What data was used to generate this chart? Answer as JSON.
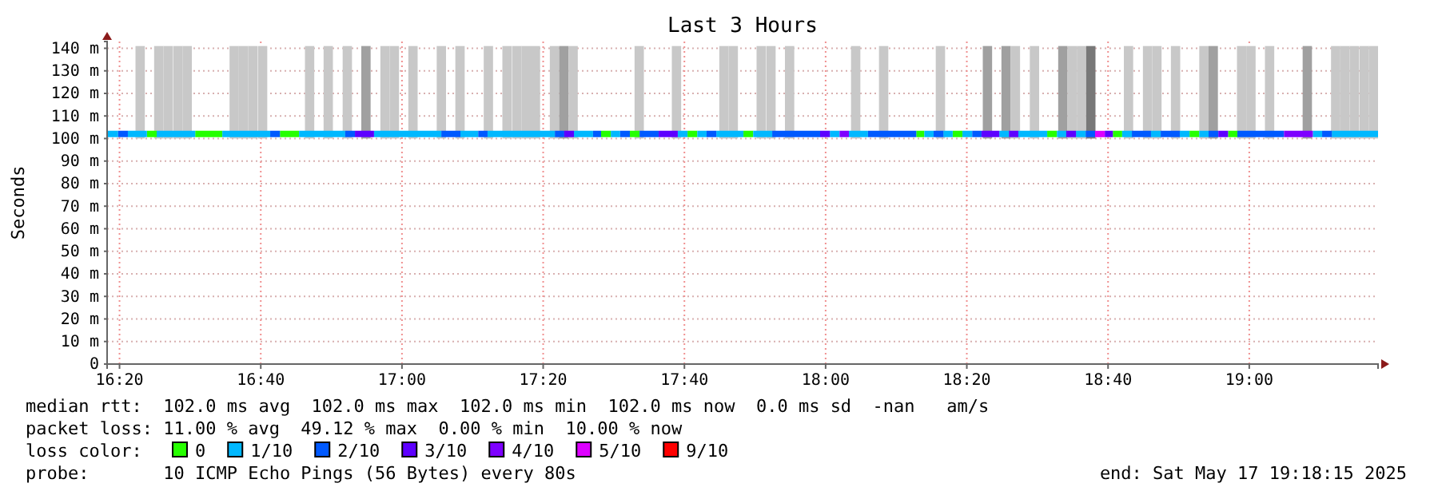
{
  "chart_data": {
    "type": "step",
    "title": "Last 3 Hours",
    "ylabel": "Seconds",
    "legend_title": "loss color:",
    "legend": "bottom",
    "grid": true,
    "xlim": [
      16.304,
      19.304
    ],
    "xticks": [
      {
        "value": 16.3333,
        "label": "16:20"
      },
      {
        "value": 16.6667,
        "label": "16:40"
      },
      {
        "value": 17,
        "label": "17:00"
      },
      {
        "value": 17.3333,
        "label": "17:20"
      },
      {
        "value": 17.6667,
        "label": "17:40"
      },
      {
        "value": 18,
        "label": "18:00"
      },
      {
        "value": 18.3333,
        "label": "18:20"
      },
      {
        "value": 18.6667,
        "label": "18:40"
      },
      {
        "value": 19,
        "label": "19:00"
      }
    ],
    "ylim": [
      0,
      143
    ],
    "yticks": [
      0,
      {
        "value": 10,
        "label": "10 m"
      },
      {
        "value": 20,
        "label": "20 m"
      },
      {
        "value": 30,
        "label": "30 m"
      },
      {
        "value": 40,
        "label": "40 m"
      },
      {
        "value": 50,
        "label": "50 m"
      },
      {
        "value": 60,
        "label": "60 m"
      },
      {
        "value": 70,
        "label": "70 m"
      },
      {
        "value": 80,
        "label": "80 m"
      },
      {
        "value": 90,
        "label": "90 m"
      },
      {
        "value": 100,
        "label": "100 m"
      },
      {
        "value": 110,
        "label": "110 m"
      },
      {
        "value": 120,
        "label": "120 m"
      },
      {
        "value": 130,
        "label": "130 m"
      },
      {
        "value": 140,
        "label": "140 m"
      }
    ],
    "series": [
      {
        "type": "bar",
        "x": [
          16.382,
          16.426,
          16.448,
          16.471,
          16.493,
          16.604,
          16.626,
          16.648,
          16.671,
          16.782,
          16.826,
          16.871,
          16.915,
          16.96,
          16.982,
          17.026,
          17.093,
          17.137,
          17.204,
          17.248,
          17.271,
          17.293,
          17.315,
          17.36,
          17.382,
          17.404,
          17.56,
          17.648,
          17.76,
          17.782,
          17.848,
          17.871,
          17.915,
          18.071,
          18.137,
          18.271,
          18.382,
          18.426,
          18.448,
          18.493,
          18.56,
          18.582,
          18.604,
          18.626,
          18.715,
          18.76,
          18.782,
          18.826,
          18.893,
          18.915,
          18.982,
          19.004,
          19.048,
          19.137,
          19.204,
          19.226,
          19.248,
          19.271,
          19.293
        ],
        "values": [
          41,
          41,
          41,
          41,
          41,
          41,
          41,
          41,
          41,
          41,
          41,
          41,
          41,
          41,
          41,
          41,
          41,
          41,
          41,
          41,
          41,
          41,
          41,
          41,
          41,
          41,
          41,
          41,
          41,
          41,
          41,
          41,
          41,
          41,
          41,
          41,
          41,
          41,
          41,
          41,
          41,
          41,
          41,
          41,
          41,
          41,
          41,
          41,
          41,
          41,
          41,
          41,
          41,
          41,
          41,
          41,
          41,
          41,
          41
        ],
        "base": [
          100,
          100,
          100,
          100,
          100,
          100,
          100,
          100,
          100,
          100,
          100,
          100,
          100,
          100,
          100,
          100,
          100,
          100,
          100,
          100,
          100,
          100,
          100,
          100,
          100,
          100,
          100,
          100,
          100,
          100,
          100,
          100,
          100,
          100,
          100,
          100,
          100,
          100,
          100,
          100,
          100,
          100,
          100,
          100,
          100,
          100,
          100,
          100,
          100,
          100,
          100,
          100,
          100,
          100,
          100,
          100,
          100,
          100,
          100
        ],
        "colors": [
          "#c8c8c8",
          "#c8c8c8",
          "#c8c8c8",
          "#c8c8c8",
          "#c8c8c8",
          "#c8c8c8",
          "#c8c8c8",
          "#c8c8c8",
          "#c8c8c8",
          "#c8c8c8",
          "#c8c8c8",
          "#c8c8c8",
          "#a0a0a0",
          "#c8c8c8",
          "#c8c8c8",
          "#c8c8c8",
          "#c8c8c8",
          "#c8c8c8",
          "#c8c8c8",
          "#c8c8c8",
          "#c8c8c8",
          "#c8c8c8",
          "#c8c8c8",
          "#c8c8c8",
          "#a0a0a0",
          "#c8c8c8",
          "#c8c8c8",
          "#c8c8c8",
          "#c8c8c8",
          "#c8c8c8",
          "#c8c8c8",
          "#c8c8c8",
          "#c8c8c8",
          "#c8c8c8",
          "#c8c8c8",
          "#c8c8c8",
          "#a0a0a0",
          "#a0a0a0",
          "#c8c8c8",
          "#c8c8c8",
          "#a0a0a0",
          "#c8c8c8",
          "#c8c8c8",
          "#787878",
          "#c8c8c8",
          "#c8c8c8",
          "#c8c8c8",
          "#c8c8c8",
          "#c8c8c8",
          "#a0a0a0",
          "#c8c8c8",
          "#c8c8c8",
          "#c8c8c8",
          "#a0a0a0",
          "#c8c8c8",
          "#c8c8c8",
          "#c8c8c8",
          "#c8c8c8",
          "#c8c8c8"
        ]
      },
      {
        "name": "0",
        "color": "#26ff00",
        "x": [
          16.398,
          16.421,
          null,
          16.512,
          16.576,
          null,
          16.712,
          16.757,
          null,
          17.47,
          17.493,
          null,
          17.538,
          17.561,
          null,
          17.674,
          17.697,
          null,
          17.806,
          17.829,
          null,
          18.214,
          18.233,
          null,
          18.3,
          18.323,
          null,
          18.523,
          18.546,
          null,
          18.678,
          18.7,
          null,
          18.859,
          18.882,
          null,
          18.95,
          18.972
        ],
        "values": [
          102,
          102,
          null,
          102,
          102,
          null,
          102,
          102,
          null,
          102,
          102,
          null,
          102,
          102,
          null,
          102,
          102,
          null,
          102,
          102,
          null,
          102,
          102,
          null,
          102,
          102,
          null,
          102,
          102,
          null,
          102,
          102,
          null,
          102,
          102,
          null,
          102,
          102
        ]
      },
      {
        "name": "1/10",
        "color": "#00b8ff",
        "x": [
          16.304,
          16.33,
          null,
          16.353,
          16.398,
          null,
          16.421,
          16.512,
          null,
          16.576,
          16.689,
          null,
          16.757,
          16.866,
          null,
          16.934,
          17.093,
          null,
          17.138,
          17.18,
          null,
          17.202,
          17.361,
          null,
          17.406,
          17.451,
          null,
          17.493,
          17.515,
          null,
          17.651,
          17.674,
          null,
          17.697,
          17.719,
          null,
          17.742,
          17.806,
          null,
          17.829,
          17.874,
          null,
          18.01,
          18.033,
          null,
          18.055,
          18.1,
          null,
          18.233,
          18.255,
          null,
          18.278,
          18.3,
          null,
          18.323,
          18.346,
          null,
          18.41,
          18.433,
          null,
          18.455,
          18.523,
          null,
          18.546,
          18.568,
          null,
          18.591,
          18.614,
          null,
          18.7,
          18.723,
          null,
          18.768,
          18.791,
          null,
          18.836,
          18.859,
          null,
          18.882,
          18.904,
          null,
          19.15,
          19.172,
          null,
          19.195,
          19.304
        ],
        "values": [
          102,
          102,
          null,
          102,
          102,
          null,
          102,
          102,
          null,
          102,
          102,
          null,
          102,
          102,
          null,
          102,
          102,
          null,
          102,
          102,
          null,
          102,
          102,
          null,
          102,
          102,
          null,
          102,
          102,
          null,
          102,
          102,
          null,
          102,
          102,
          null,
          102,
          102,
          null,
          102,
          102,
          null,
          102,
          102,
          null,
          102,
          102,
          null,
          102,
          102,
          null,
          102,
          102,
          null,
          102,
          102,
          null,
          102,
          102,
          null,
          102,
          102,
          null,
          102,
          102,
          null,
          102,
          102,
          null,
          102,
          102,
          null,
          102,
          102,
          null,
          102,
          102,
          null,
          102,
          102,
          null,
          102,
          102,
          null,
          102,
          102
        ]
      },
      {
        "name": "2/10",
        "color": "#0059ff",
        "x": [
          16.33,
          16.353,
          null,
          16.689,
          16.712,
          null,
          16.866,
          16.889,
          null,
          17.093,
          17.138,
          null,
          17.18,
          17.202,
          null,
          17.361,
          17.383,
          null,
          17.451,
          17.47,
          null,
          17.515,
          17.538,
          null,
          17.561,
          17.606,
          null,
          17.719,
          17.742,
          null,
          17.874,
          17.987,
          null,
          18.1,
          18.214,
          null,
          18.255,
          18.278,
          null,
          18.346,
          18.368,
          null,
          18.614,
          18.636,
          null,
          18.723,
          18.768,
          null,
          18.791,
          18.836,
          null,
          18.904,
          18.927,
          null,
          18.972,
          19.082,
          null,
          19.172,
          19.195
        ],
        "values": [
          102,
          102,
          null,
          102,
          102,
          null,
          102,
          102,
          null,
          102,
          102,
          null,
          102,
          102,
          null,
          102,
          102,
          null,
          102,
          102,
          null,
          102,
          102,
          null,
          102,
          102,
          null,
          102,
          102,
          null,
          102,
          102,
          null,
          102,
          102,
          null,
          102,
          102,
          null,
          102,
          102,
          null,
          102,
          102,
          null,
          102,
          102,
          null,
          102,
          102,
          null,
          102,
          102,
          null,
          102,
          102,
          null,
          102,
          102
        ]
      },
      {
        "name": "3/10",
        "color": "#5e00ff",
        "x": [
          16.889,
          16.934,
          null,
          17.383,
          17.406,
          null,
          17.606,
          17.651,
          null,
          17.987,
          18.01,
          null,
          18.368,
          18.41,
          null,
          18.433,
          18.455,
          null,
          18.568,
          18.591,
          null,
          18.659,
          18.678,
          null,
          18.927,
          18.95
        ],
        "values": [
          102,
          102,
          null,
          102,
          102,
          null,
          102,
          102,
          null,
          102,
          102,
          null,
          102,
          102,
          null,
          102,
          102,
          null,
          102,
          102,
          null,
          102,
          102,
          null,
          102,
          102
        ]
      },
      {
        "name": "4/10",
        "color": "#7e00ff",
        "x": [
          18.033,
          18.055,
          null,
          19.082,
          19.15
        ],
        "values": [
          102,
          102,
          null,
          102,
          102
        ]
      },
      {
        "name": "5/10",
        "color": "#dd00ff",
        "x": [
          18.636,
          18.659
        ],
        "values": [
          102,
          102
        ]
      },
      {
        "name": "9/10",
        "color": "#ff0000"
      }
    ],
    "annotations": [
      "median rtt:  102.0 ms avg  102.0 ms max  102.0 ms min  102.0 ms now  0.0 ms sd  -nan   am/s",
      "packet loss: 11.00 % avg  49.12 % max  0.00 % min  10.00 % now",
      "probe:       10 ICMP Echo Pings (56 Bytes) every 80s",
      "end: Sat May 17 19:18:15 2025"
    ]
  }
}
